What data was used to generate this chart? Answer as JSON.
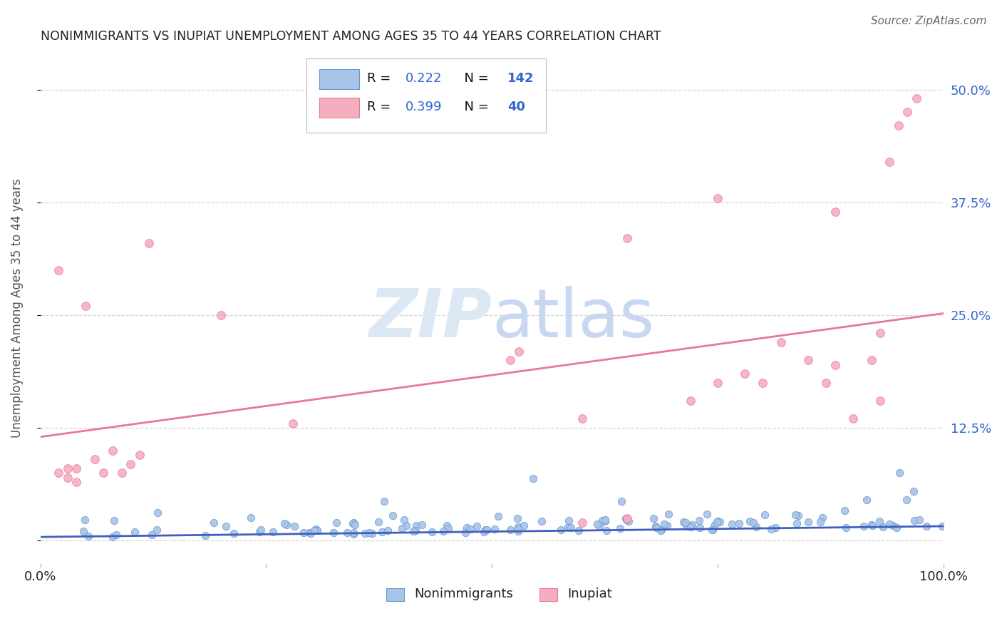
{
  "title": "NONIMMIGRANTS VS INUPIAT UNEMPLOYMENT AMONG AGES 35 TO 44 YEARS CORRELATION CHART",
  "source": "Source: ZipAtlas.com",
  "ylabel": "Unemployment Among Ages 35 to 44 years",
  "xlim": [
    0.0,
    1.0
  ],
  "ylim": [
    -0.025,
    0.54
  ],
  "yticks": [
    0.0,
    0.125,
    0.25,
    0.375,
    0.5
  ],
  "yticklabels_right": [
    "",
    "12.5%",
    "25.0%",
    "37.5%",
    "50.0%"
  ],
  "xtick_labels": [
    "0.0%",
    "",
    "",
    "",
    "100.0%"
  ],
  "nonimmigrants_color": "#a8c4e8",
  "nonimmigrants_edge": "#6699cc",
  "inupiat_color": "#f5aec0",
  "inupiat_edge": "#e87898",
  "nonimmigrants_line_color": "#4060c0",
  "inupiat_line_color": "#e87898",
  "scatter_size": 55,
  "background_color": "#ffffff",
  "grid_color": "#cccccc",
  "title_color": "#222222",
  "axis_label_color": "#555555",
  "tick_label_color": "#3366cc",
  "watermark_color": "#dde8f5",
  "legend_R1": "0.222",
  "legend_N1": "142",
  "legend_R2": "0.399",
  "legend_N2": "40",
  "inupiat_line_x0": 0.0,
  "inupiat_line_y0": 0.115,
  "inupiat_line_x1": 1.0,
  "inupiat_line_y1": 0.252,
  "nonimmigrants_line_x0": 0.0,
  "nonimmigrants_line_y0": 0.004,
  "nonimmigrants_line_x1": 1.0,
  "nonimmigrants_line_y1": 0.016
}
